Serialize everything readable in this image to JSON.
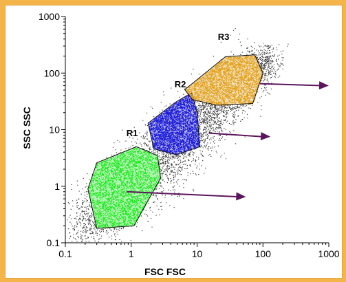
{
  "chart_data": {
    "type": "scatter",
    "xlabel": "FSC FSC",
    "ylabel": "SSC SSC",
    "x_scale": "log",
    "y_scale": "log",
    "xlim": [
      0.1,
      1000
    ],
    "ylim": [
      0.1,
      1000
    ],
    "x_ticks": [
      "0.1",
      "1",
      "10",
      "100",
      "1000"
    ],
    "y_ticks": [
      "0.1",
      "1",
      "10",
      "100",
      "1000"
    ],
    "grid": false,
    "regions": [
      {
        "label": "R1",
        "color": "#1ee61e",
        "polygon": [
          [
            0.3,
            0.18
          ],
          [
            1.1,
            0.2
          ],
          [
            2.8,
            1.4
          ],
          [
            2.5,
            3.5
          ],
          [
            1.2,
            5
          ],
          [
            0.3,
            2.6
          ],
          [
            0.22,
            0.9
          ]
        ]
      },
      {
        "label": "R2",
        "color": "#1a1ad6",
        "polygon": [
          [
            2.2,
            4.6
          ],
          [
            4.8,
            3.6
          ],
          [
            11,
            5
          ],
          [
            10,
            20
          ],
          [
            8.3,
            45
          ],
          [
            4.6,
            30
          ],
          [
            1.8,
            13
          ]
        ]
      },
      {
        "label": "R3",
        "color": "#e0a020",
        "polygon": [
          [
            8.5,
            34
          ],
          [
            20,
            27
          ],
          [
            70,
            29
          ],
          [
            100,
            100
          ],
          [
            75,
            210
          ],
          [
            27,
            195
          ],
          [
            6.5,
            51
          ]
        ]
      }
    ],
    "annotations": [
      {
        "type": "arrow",
        "from": [
          0.85,
          0.8
        ],
        "to": [
          55,
          0.65
        ]
      },
      {
        "type": "arrow",
        "from": [
          15,
          8.7
        ],
        "to": [
          130,
          7.5
        ]
      },
      {
        "type": "arrow",
        "from": [
          90,
          65
        ],
        "to": [
          1000,
          60
        ]
      }
    ]
  }
}
